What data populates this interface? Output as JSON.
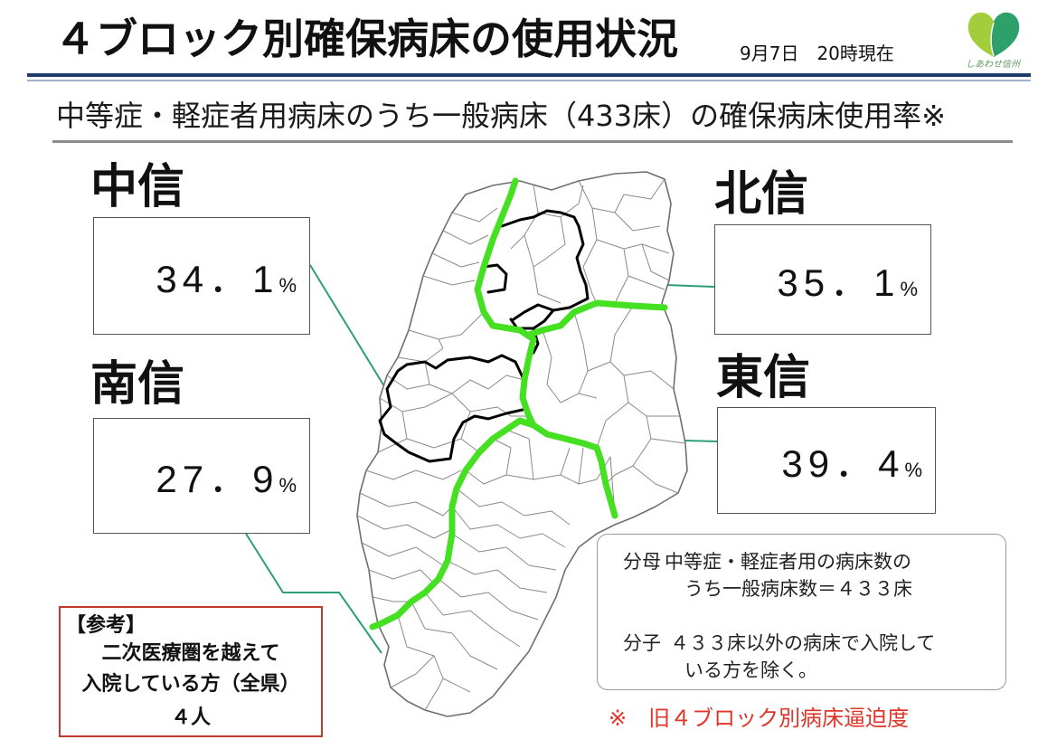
{
  "header": {
    "title": "４ブロック別確保病床の使用状況",
    "as_of": "9月7日　20時現在",
    "logo": {
      "icon": "heart-leaf-logo-icon",
      "text": "しあわせ信州"
    }
  },
  "subtitle": "中等症・軽症者用病床のうち一般病床（433床）の確保病床使用率※",
  "blocks": {
    "chushin": {
      "name": "中信",
      "rate": "34．1",
      "unit": "%"
    },
    "hokushin": {
      "name": "北信",
      "rate": "35．1",
      "unit": "%"
    },
    "nanshin": {
      "name": "南信",
      "rate": "27．9",
      "unit": "%"
    },
    "toshin": {
      "name": "東信",
      "rate": "39．4",
      "unit": "%"
    }
  },
  "definitions": {
    "denominator": {
      "label": "分母",
      "lines": [
        "中等症・軽症者用の病床数の",
        "うち一般病床数＝４３３床"
      ]
    },
    "numerator": {
      "label": "分子",
      "lines": [
        "４３３床以外の病床で入院して",
        "いる方を除く。"
      ]
    }
  },
  "reference": {
    "heading": "【参考】",
    "lines": [
      "二次医療圏を越えて",
      "入院している方（全県）"
    ],
    "count": "４人"
  },
  "footnote": "※　旧４ブロック別病床逼迫度",
  "colors": {
    "header_rule": "#1f3a6e",
    "block_boundary": "#44e021",
    "leader_line": "#2e9e78",
    "highlight_outline": "#000000",
    "reference_border": "#c0392b",
    "footnote_text": "#e0352b",
    "logo_light": "#a3cd3b",
    "logo_dark": "#2ea06a"
  }
}
